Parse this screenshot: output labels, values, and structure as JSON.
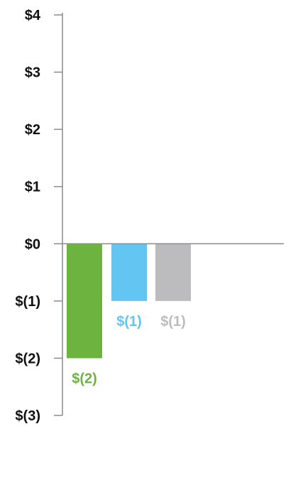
{
  "chart_data": {
    "type": "bar",
    "title": "",
    "xlabel": "",
    "ylabel": "",
    "ylim": [
      -3,
      4
    ],
    "yticks": [
      {
        "value": 4,
        "label": "$4"
      },
      {
        "value": 3,
        "label": "$3"
      },
      {
        "value": 2,
        "label": "$2"
      },
      {
        "value": 1,
        "label": "$1"
      },
      {
        "value": 0,
        "label": "$0"
      },
      {
        "value": -1,
        "label": "$(1)"
      },
      {
        "value": -2,
        "label": "$(2)"
      },
      {
        "value": -3,
        "label": "$(3)"
      }
    ],
    "bars": [
      {
        "value": -2,
        "label": "$(2)",
        "color": "#6db33f"
      },
      {
        "value": -1,
        "label": "$(1)",
        "color": "#63c5f1"
      },
      {
        "value": -1,
        "label": "$(1)",
        "color": "#bcbcbe"
      }
    ],
    "grid": false,
    "legend": "none"
  }
}
